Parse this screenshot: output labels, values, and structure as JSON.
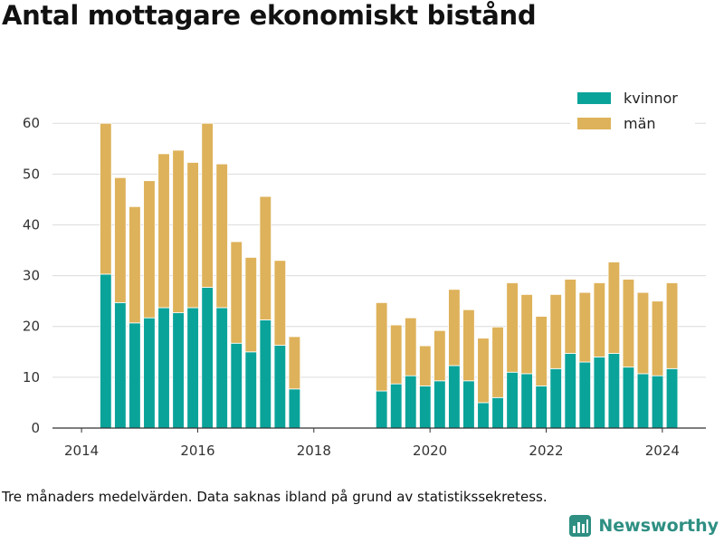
{
  "title": "Antal mottagare ekonomiskt bistånd",
  "caption": "Tre månaders medelvärden. Data saknas ibland på grund av statistikssekretess.",
  "brand": {
    "name": "Newsworthy",
    "icon": "newsworthy-logo-icon",
    "color": "#2e8f82"
  },
  "chart_data": {
    "type": "bar",
    "stacked": true,
    "x": [
      "2014-06",
      "2014-09",
      "2014-12",
      "2015-03",
      "2015-06",
      "2015-09",
      "2015-12",
      "2016-03",
      "2016-06",
      "2016-09",
      "2016-12",
      "2017-03",
      "2017-06",
      "2017-09",
      "2019-03",
      "2019-06",
      "2019-09",
      "2019-12",
      "2020-03",
      "2020-06",
      "2020-09",
      "2020-12",
      "2021-03",
      "2021-06",
      "2021-09",
      "2021-12",
      "2022-03",
      "2022-06",
      "2022-09",
      "2022-12",
      "2023-03",
      "2023-06",
      "2023-09",
      "2023-12",
      "2024-03"
    ],
    "series": [
      {
        "name": "kvinnor",
        "color": "#0aa39a",
        "values": [
          30.3,
          24.7,
          20.7,
          21.7,
          23.7,
          22.7,
          23.7,
          27.7,
          23.7,
          16.7,
          15.0,
          21.3,
          16.3,
          7.7,
          7.3,
          8.7,
          10.3,
          8.3,
          9.3,
          12.3,
          9.3,
          5.0,
          6.0,
          11.0,
          10.7,
          8.3,
          11.7,
          14.7,
          13.0,
          14.0,
          14.7,
          12.0,
          10.7,
          10.3,
          11.7
        ]
      },
      {
        "name": "män",
        "color": "#deb25a",
        "values": [
          29.7,
          24.6,
          22.9,
          27.0,
          30.3,
          32.0,
          28.6,
          32.3,
          28.3,
          20.0,
          18.6,
          24.3,
          16.7,
          10.3,
          17.4,
          11.6,
          11.4,
          7.9,
          9.9,
          15.0,
          14.0,
          12.7,
          13.9,
          17.6,
          15.6,
          13.7,
          14.6,
          14.6,
          13.7,
          14.6,
          18.0,
          17.3,
          16.0,
          14.7,
          16.9
        ]
      }
    ],
    "xlim": [
      "2013-07",
      "2024-10"
    ],
    "ylim": [
      0,
      62
    ],
    "yticks": [
      0,
      10,
      20,
      30,
      40,
      50,
      60
    ],
    "xticks": [
      "2014",
      "2016",
      "2018",
      "2020",
      "2022",
      "2024"
    ],
    "grid": true,
    "legend": "top-right"
  }
}
